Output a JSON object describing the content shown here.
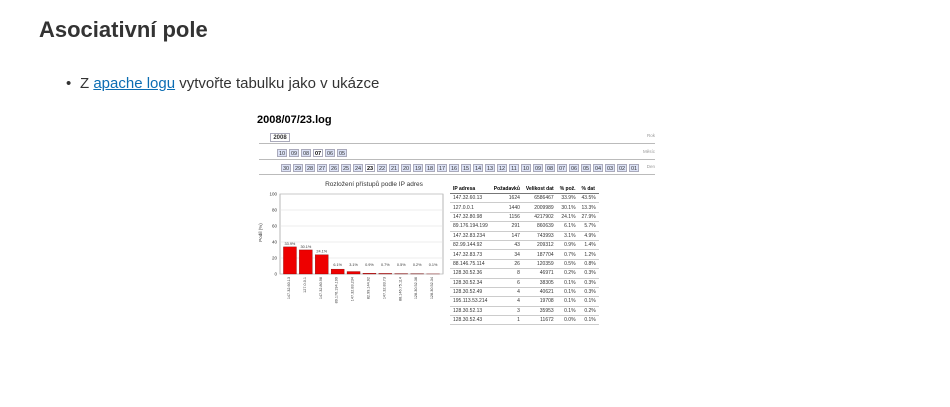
{
  "page": {
    "heading": "Asociativní pole",
    "bullet": {
      "prefix": "Z ",
      "link_text": "apache logu",
      "suffix": " vytvořte tabulku jako v ukázce"
    }
  },
  "example": {
    "log_title": "2008/07/23.log",
    "year": "2008",
    "year_label": "Rok",
    "months": [
      "10",
      "09",
      "08",
      "07",
      "06",
      "05"
    ],
    "month_selected_index": 3,
    "month_label": "Měsíc",
    "days": [
      "30",
      "29",
      "28",
      "27",
      "26",
      "25",
      "24",
      "23",
      "22",
      "21",
      "20",
      "19",
      "18",
      "17",
      "16",
      "15",
      "14",
      "13",
      "12",
      "11",
      "10",
      "09",
      "08",
      "07",
      "06",
      "05",
      "04",
      "03",
      "02",
      "01"
    ],
    "day_selected_index": 7,
    "day_label": "Den",
    "chart_title": "Rozložení přístupů podle IP adres",
    "chart_ylabel": "Podíl (%)",
    "table": {
      "headers": [
        "IP adresa",
        "Požadavků",
        "Velikost dat",
        "% pož.",
        "% dat"
      ],
      "rows": [
        [
          "147.32.60.13",
          "1624",
          "6586467",
          "33.9%",
          "43.5%"
        ],
        [
          "127.0.0.1",
          "1440",
          "2009989",
          "30.1%",
          "13.3%"
        ],
        [
          "147.32.80.98",
          "1156",
          "4217902",
          "24.1%",
          "27.9%"
        ],
        [
          "89.176.194.199",
          "291",
          "860639",
          "6.1%",
          "5.7%"
        ],
        [
          "147.32.83.234",
          "147",
          "743993",
          "3.1%",
          "4.9%"
        ],
        [
          "82.99.144.92",
          "43",
          "209312",
          "0.9%",
          "1.4%"
        ],
        [
          "147.32.83.73",
          "34",
          "187704",
          "0.7%",
          "1.2%"
        ],
        [
          "88.146.75.114",
          "26",
          "120359",
          "0.5%",
          "0.8%"
        ],
        [
          "128.30.52.36",
          "8",
          "46971",
          "0.2%",
          "0.3%"
        ],
        [
          "128.30.52.34",
          "6",
          "38305",
          "0.1%",
          "0.3%"
        ],
        [
          "128.30.52.49",
          "4",
          "40621",
          "0.1%",
          "0.3%"
        ],
        [
          "195.113.53.214",
          "4",
          "19708",
          "0.1%",
          "0.1%"
        ],
        [
          "128.30.52.13",
          "3",
          "35953",
          "0.1%",
          "0.2%"
        ],
        [
          "128.30.52.43",
          "1",
          "11672",
          "0.0%",
          "0.1%"
        ]
      ]
    }
  },
  "chart_data": {
    "type": "bar",
    "title": "Rozložení přístupů podle IP adres",
    "xlabel": "",
    "ylabel": "Podíl (%)",
    "ylim": [
      0,
      100
    ],
    "yticks": [
      0,
      20,
      40,
      60,
      80,
      100
    ],
    "grid": true,
    "bar_color": "#ee0000",
    "categories": [
      "147.32.60.13",
      "127.0.0.1",
      "147.32.80.98",
      "89.176.194.199",
      "147.32.83.234",
      "82.99.144.92",
      "147.32.83.73",
      "88.146.75.114",
      "128.30.52.36",
      "128.30.52.34"
    ],
    "values": [
      33.9,
      30.1,
      24.1,
      6.1,
      3.1,
      0.9,
      0.7,
      0.5,
      0.2,
      0.1
    ],
    "labels": [
      "33.9%",
      "30.1%",
      "24.1%",
      "6.1%",
      "3.1%",
      "0.9%",
      "0.7%",
      "0.5%",
      "0.2%",
      "0.1%"
    ]
  }
}
